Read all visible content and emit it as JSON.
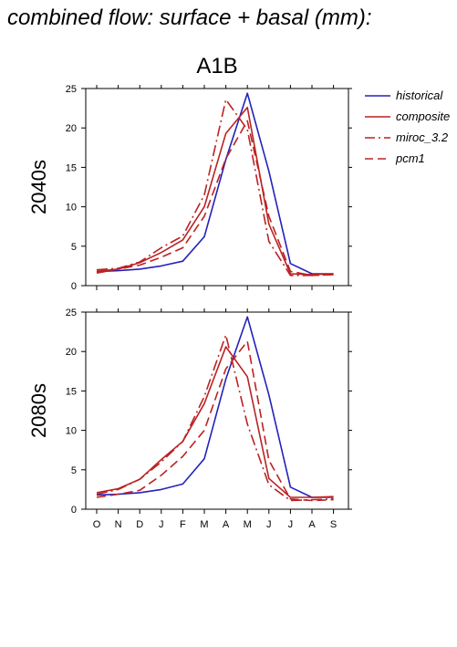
{
  "title": "combined flow: surface + basal (mm):",
  "scenario": "A1B",
  "chart_data": {
    "type": "line",
    "categories": [
      "O",
      "N",
      "D",
      "J",
      "F",
      "M",
      "A",
      "M",
      "J",
      "J",
      "A",
      "S"
    ],
    "ylim": [
      0,
      25
    ],
    "yticks": [
      0,
      5,
      10,
      15,
      20,
      25
    ],
    "legend": {
      "placement": "top-right",
      "entries": [
        "historical",
        "composite",
        "miroc_3.2",
        "pcm1"
      ]
    },
    "colors": {
      "historical": "#2222bb",
      "composite": "#bb2222",
      "miroc_3.2": "#bb2222",
      "pcm1": "#bb2222"
    },
    "line_styles": {
      "historical": "solid",
      "composite": "solid",
      "miroc_3.2": "dash-dot",
      "pcm1": "dashed"
    },
    "panels": [
      {
        "label": "2040s",
        "series": [
          {
            "name": "historical",
            "values": [
              1.8,
              1.9,
              2.1,
              2.5,
              3.1,
              6.2,
              16.0,
              24.4,
              14.5,
              2.8,
              1.5,
              1.5
            ]
          },
          {
            "name": "composite",
            "values": [
              1.8,
              2.1,
              2.9,
              4.2,
              5.8,
              10.0,
              19.3,
              22.6,
              7.8,
              1.5,
              1.4,
              1.5
            ]
          },
          {
            "name": "miroc_3.2",
            "values": [
              2.0,
              2.2,
              3.0,
              4.8,
              6.3,
              11.5,
              23.6,
              19.8,
              5.6,
              1.3,
              1.3,
              1.4
            ]
          },
          {
            "name": "pcm1",
            "values": [
              1.6,
              2.1,
              2.6,
              3.6,
              4.8,
              8.8,
              16.1,
              20.9,
              8.8,
              1.8,
              1.3,
              1.4
            ]
          }
        ]
      },
      {
        "label": "2080s",
        "series": [
          {
            "name": "historical",
            "values": [
              1.8,
              1.9,
              2.1,
              2.5,
              3.2,
              6.4,
              16.5,
              24.4,
              14.5,
              2.8,
              1.5,
              1.5
            ]
          },
          {
            "name": "composite",
            "values": [
              2.1,
              2.6,
              3.8,
              6.3,
              8.6,
              13.4,
              20.6,
              16.8,
              3.9,
              1.5,
              1.5,
              1.6
            ]
          },
          {
            "name": "miroc_3.2",
            "values": [
              1.9,
              2.5,
              3.8,
              6.0,
              8.6,
              14.3,
              22.1,
              10.8,
              3.1,
              1.1,
              1.2,
              1.3
            ]
          },
          {
            "name": "pcm1",
            "values": [
              1.5,
              1.9,
              2.4,
              4.3,
              6.7,
              10.0,
              17.8,
              21.3,
              6.2,
              1.3,
              1.1,
              1.2
            ]
          }
        ]
      }
    ]
  }
}
